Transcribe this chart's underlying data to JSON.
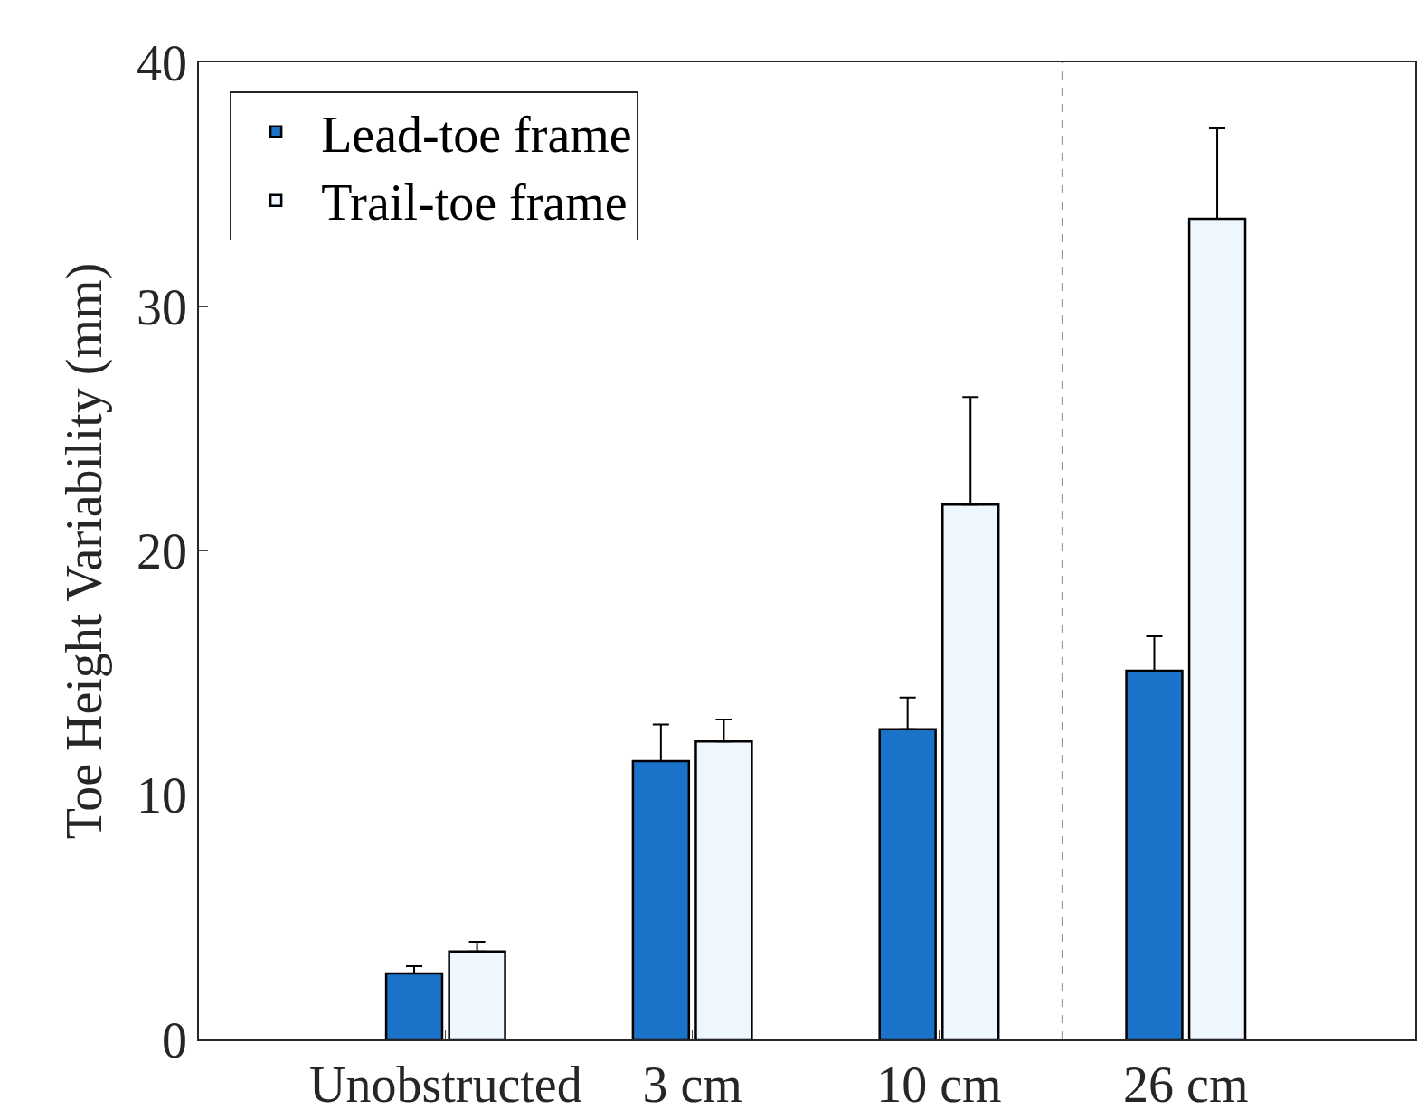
{
  "chart_data": {
    "type": "bar",
    "ylabel": "Toe Height Variability (mm)",
    "categories": [
      "Unobstructed",
      "3 cm",
      "10 cm",
      "26 cm"
    ],
    "series": [
      {
        "name": "Lead-toe frame",
        "color": "#1a73c9",
        "values": [
          2.7,
          11.4,
          12.7,
          15.1
        ],
        "errors": [
          [
            2.7,
            3.0
          ],
          [
            11.4,
            12.9
          ],
          [
            12.7,
            14.0
          ],
          [
            15.1,
            16.5
          ]
        ]
      },
      {
        "name": "Trail-toe frame",
        "color": "#eef6fe",
        "values": [
          3.6,
          12.2,
          21.9,
          33.6
        ],
        "errors": [
          [
            3.6,
            4.0
          ],
          [
            12.2,
            13.1
          ],
          [
            21.9,
            26.3
          ],
          [
            33.6,
            37.3
          ]
        ]
      }
    ],
    "ylim": [
      0,
      40
    ],
    "yticks": [
      0,
      10,
      20,
      30,
      40
    ],
    "grid": false,
    "legend": "top left"
  }
}
